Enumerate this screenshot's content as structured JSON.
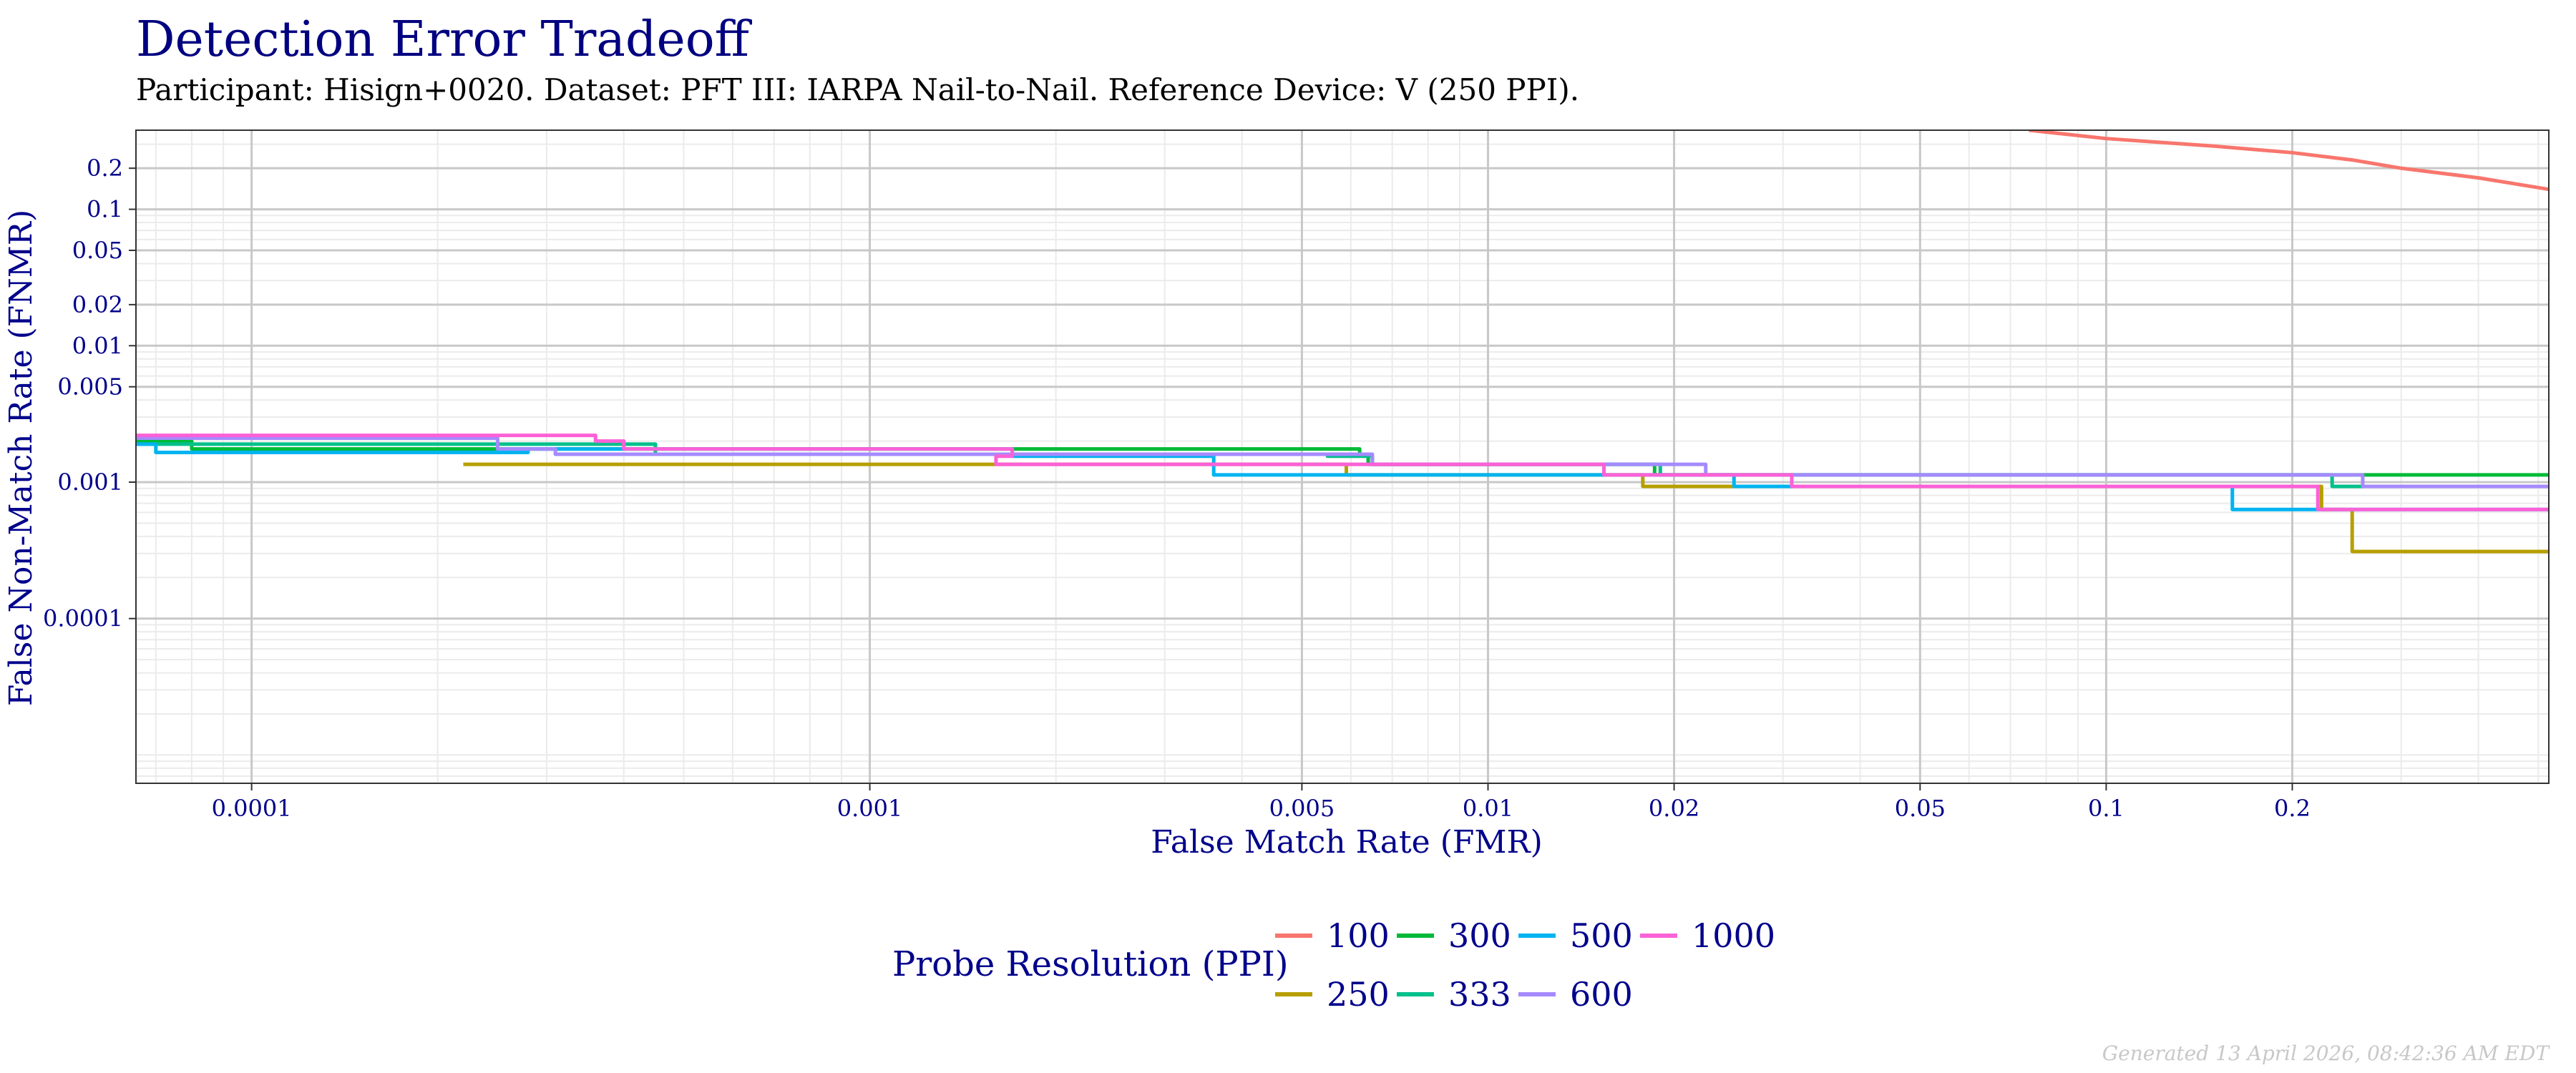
{
  "chart_data": {
    "type": "line",
    "step": true,
    "title": "Detection Error Tradeoff",
    "subtitle": "Participant: Hisign+0020. Dataset: PFT III: IARPA Nail-to-Nail. Reference Device: V (250 PPI).",
    "xlabel": "False Match Rate (FMR)",
    "ylabel": "False Non-Match Rate (FNMR)",
    "xscale": "log",
    "yscale": "log",
    "xlim": [
      6.5e-05,
      0.52
    ],
    "ylim": [
      6.2e-06,
      0.38
    ],
    "grid": true,
    "x_ticks": [
      {
        "value": 0.0001,
        "label": "0.0001"
      },
      {
        "value": 0.001,
        "label": "0.001"
      },
      {
        "value": 0.005,
        "label": "0.005"
      },
      {
        "value": 0.01,
        "label": "0.01"
      },
      {
        "value": 0.02,
        "label": "0.02"
      },
      {
        "value": 0.05,
        "label": "0.05"
      },
      {
        "value": 0.1,
        "label": "0.1"
      },
      {
        "value": 0.2,
        "label": "0.2"
      }
    ],
    "y_ticks": [
      {
        "value": 0.2,
        "label": "0.2"
      },
      {
        "value": 0.1,
        "label": "0.1"
      },
      {
        "value": 0.05,
        "label": "0.05"
      },
      {
        "value": 0.02,
        "label": "0.02"
      },
      {
        "value": 0.01,
        "label": "0.01"
      },
      {
        "value": 0.005,
        "label": "0.005"
      },
      {
        "value": 0.001,
        "label": "0.001"
      },
      {
        "value": 0.0001,
        "label": "0.0001"
      }
    ],
    "legend_title": "Probe Resolution (PPI)",
    "legend_position": "bottom",
    "series": [
      {
        "name": "100",
        "color": "#F8766D",
        "x": [
          0.075,
          0.1,
          0.15,
          0.2,
          0.25,
          0.3,
          0.4,
          0.52
        ],
        "y": [
          0.38,
          0.33,
          0.29,
          0.26,
          0.23,
          0.2,
          0.17,
          0.14
        ]
      },
      {
        "name": "250",
        "color": "#B79F00",
        "x": [
          0.00022,
          0.0016,
          0.0059,
          0.0178,
          0.0265,
          0.223,
          0.25,
          0.52
        ],
        "y": [
          0.00135,
          0.00135,
          0.00113,
          0.00093,
          0.00093,
          0.00063,
          0.00031,
          0.00031
        ]
      },
      {
        "name": "300",
        "color": "#00BA38",
        "x": [
          6.5e-05,
          8e-05,
          0.00022,
          0.00055,
          0.0062,
          0.0064,
          0.0186,
          0.52
        ],
        "y": [
          0.002,
          0.00175,
          0.00175,
          0.00175,
          0.0016,
          0.00135,
          0.00113,
          0.00113
        ]
      },
      {
        "name": "333",
        "color": "#00C08B",
        "x": [
          6.5e-05,
          8e-05,
          0.0002,
          0.00045,
          0.0055,
          0.0065,
          0.019,
          0.232,
          0.52
        ],
        "y": [
          0.0019,
          0.0019,
          0.0019,
          0.0016,
          0.00155,
          0.00135,
          0.00113,
          0.00093,
          0.00093
        ]
      },
      {
        "name": "500",
        "color": "#00B4F0",
        "x": [
          6.5e-05,
          7e-05,
          0.0002,
          0.00028,
          0.0017,
          0.0036,
          0.0065,
          0.025,
          0.029,
          0.16,
          0.18,
          0.52
        ],
        "y": [
          0.0019,
          0.00165,
          0.00165,
          0.00175,
          0.00155,
          0.00113,
          0.00113,
          0.00093,
          0.00093,
          0.00063,
          0.00063,
          0.00063
        ]
      },
      {
        "name": "600",
        "color": "#A58AFF",
        "x": [
          6.5e-05,
          0.00025,
          0.00031,
          0.0018,
          0.0045,
          0.0065,
          0.0225,
          0.26,
          0.52
        ],
        "y": [
          0.0021,
          0.00175,
          0.0016,
          0.0016,
          0.0016,
          0.00135,
          0.00113,
          0.00093,
          0.00093
        ]
      },
      {
        "name": "1000",
        "color": "#FB61D7",
        "x": [
          6.5e-05,
          0.00028,
          0.00036,
          0.0004,
          0.0017,
          0.0016,
          0.0154,
          0.022,
          0.031,
          0.22,
          0.52
        ],
        "y": [
          0.0022,
          0.0022,
          0.002,
          0.00175,
          0.00155,
          0.00135,
          0.00113,
          0.00113,
          0.00093,
          0.00063,
          0.00063
        ]
      }
    ]
  },
  "footer": "Generated 13 April 2026, 08:42:36 AM EDT"
}
